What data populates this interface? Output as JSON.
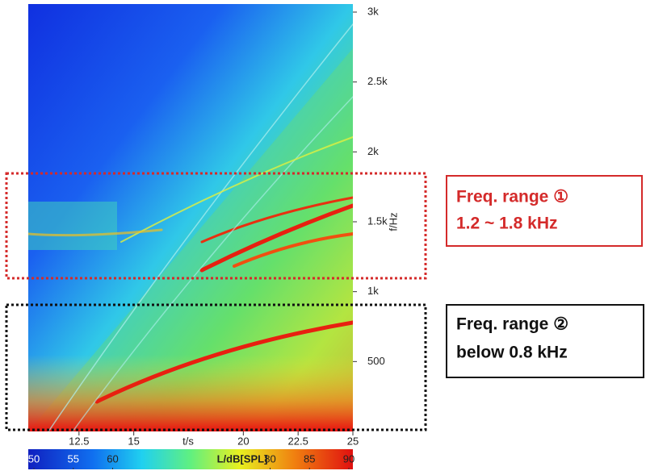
{
  "chart_data": {
    "type": "spectrogram",
    "xlabel": "t/s",
    "ylabel": "f/Hz",
    "xlim": [
      10,
      25
    ],
    "xticks": [
      12.5,
      15,
      20,
      22.5,
      25
    ],
    "ylim": [
      0,
      3000
    ],
    "yticks": [
      500,
      {
        "value": 1000,
        "label": "1k"
      },
      {
        "value": 1500,
        "label": "1.5k"
      },
      {
        "value": 2000,
        "label": "2k"
      },
      {
        "value": 2500,
        "label": "2.5k"
      },
      {
        "value": 3000,
        "label": "3k"
      }
    ],
    "colorbar": {
      "label": "L/dB[SPL]",
      "clim": [
        50,
        90
      ],
      "ticks": [
        50,
        55,
        60,
        80,
        85,
        90
      ]
    },
    "annotations": [
      {
        "lines": [
          "Freq. range ①",
          "1.2 ~ 1.8 kHz"
        ],
        "color": "#d42a2a"
      },
      {
        "lines": [
          "Freq. range ②",
          "below 0.8 kHz"
        ],
        "color": "#111111"
      }
    ]
  }
}
